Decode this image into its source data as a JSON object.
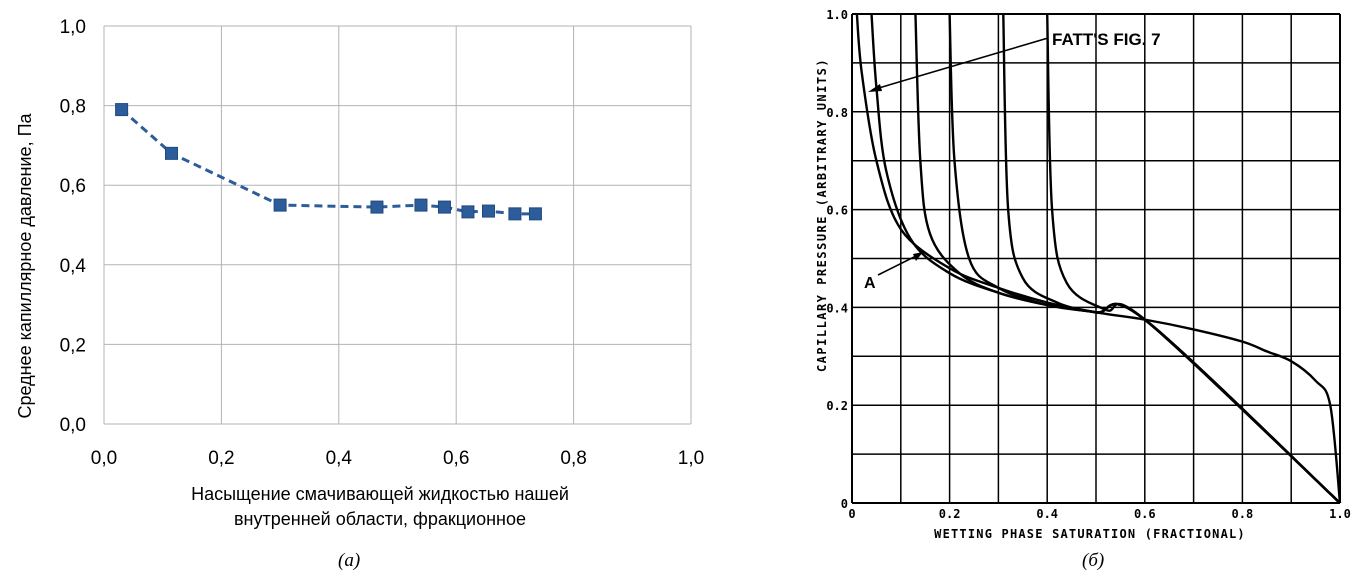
{
  "chart_data": [
    {
      "type": "line",
      "subplot": "(a)",
      "xlabel": [
        "Насыщение смачивающей жидкостью нашей",
        "внутренней области, фракционное"
      ],
      "ylabel": "Среднее капиллярное давление, Па",
      "xlim": [
        0.0,
        1.0
      ],
      "ylim": [
        0.0,
        1.0
      ],
      "x_ticks": [
        "0,0",
        "0,2",
        "0,4",
        "0,6",
        "0,8",
        "1,0"
      ],
      "y_ticks": [
        "0,0",
        "0,2",
        "0,4",
        "0,6",
        "0,8",
        "1,0"
      ],
      "grid": true,
      "line_style": "dashed",
      "marker": "square",
      "color": "#2d5c9a",
      "series": [
        {
          "x": [
            0.03,
            0.115,
            0.3,
            0.465,
            0.54,
            0.58,
            0.62,
            0.655,
            0.7,
            0.735
          ],
          "y": [
            0.79,
            0.68,
            0.55,
            0.545,
            0.55,
            0.545,
            0.533,
            0.535,
            0.528,
            0.528
          ]
        }
      ]
    },
    {
      "type": "line",
      "subplot": "(б)",
      "xlabel": "WETTING PHASE SATURATION (FRACTIONAL)",
      "ylabel": "CAPILLARY PRESSURE (ARBITRARY UNITS)",
      "xlim": [
        0.0,
        1.0
      ],
      "ylim": [
        0.0,
        1.0
      ],
      "x_ticks": [
        "0",
        "0.2",
        "0.4",
        "0.6",
        "0.8",
        "1.0"
      ],
      "y_ticks": [
        "0",
        "0.2",
        "0.4",
        "0.6",
        "0.8",
        "1.0"
      ],
      "grid": true,
      "color": "#000000",
      "annotations": [
        "FATT'S FIG. 7",
        "A"
      ],
      "series": [
        {
          "x": [
            1.0,
            0.98,
            0.95,
            0.9,
            0.85,
            0.8,
            0.7,
            0.6,
            0.5,
            0.4,
            0.3,
            0.2,
            0.1,
            0.05,
            0.02,
            0.01
          ],
          "y": [
            0.0,
            0.2,
            0.25,
            0.29,
            0.31,
            0.33,
            0.355,
            0.375,
            0.39,
            0.41,
            0.44,
            0.48,
            0.56,
            0.7,
            0.88,
            1.0
          ]
        },
        {
          "x": [
            1.0,
            0.6,
            0.5,
            0.4,
            0.3,
            0.2,
            0.12,
            0.07,
            0.05,
            0.04
          ],
          "y": [
            0.0,
            0.375,
            0.39,
            0.405,
            0.43,
            0.47,
            0.54,
            0.68,
            0.85,
            1.0
          ]
        },
        {
          "x": [
            1.0,
            0.6,
            0.5,
            0.4,
            0.3,
            0.22,
            0.16,
            0.14,
            0.13
          ],
          "y": [
            0.0,
            0.375,
            0.39,
            0.405,
            0.43,
            0.47,
            0.55,
            0.7,
            1.0
          ]
        },
        {
          "x": [
            1.0,
            0.6,
            0.5,
            0.4,
            0.3,
            0.24,
            0.21,
            0.2
          ],
          "y": [
            0.0,
            0.375,
            0.39,
            0.405,
            0.44,
            0.5,
            0.7,
            1.0
          ]
        },
        {
          "x": [
            1.0,
            0.6,
            0.5,
            0.42,
            0.35,
            0.32,
            0.31
          ],
          "y": [
            0.0,
            0.375,
            0.39,
            0.41,
            0.46,
            0.6,
            1.0
          ]
        },
        {
          "x": [
            1.0,
            0.6,
            0.52,
            0.44,
            0.41,
            0.4
          ],
          "y": [
            0.0,
            0.375,
            0.395,
            0.45,
            0.6,
            1.0
          ]
        }
      ]
    }
  ],
  "captions": {
    "a": "(a)",
    "b": "(б)"
  }
}
